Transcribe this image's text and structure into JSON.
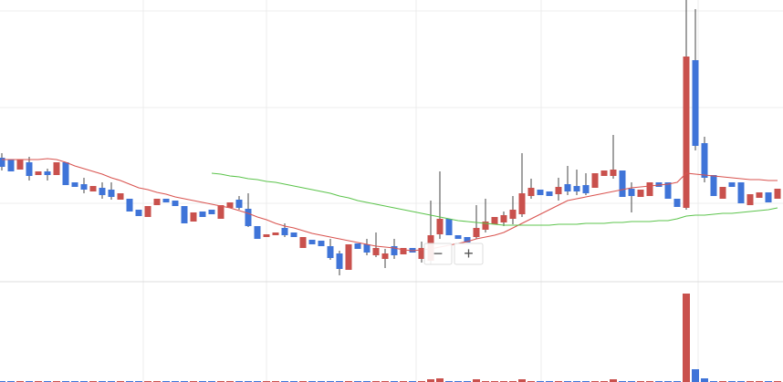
{
  "chart_data": {
    "type": "candlestick",
    "ylim": [
      0,
      310
    ],
    "up_color": "#c9514d",
    "down_color": "#3f74d8",
    "open": [
      137,
      135,
      124,
      132,
      118,
      122,
      118,
      132,
      110,
      108,
      100,
      104,
      102,
      91,
      92,
      80,
      72,
      85,
      92,
      90,
      84,
      67,
      78,
      80,
      70,
      82,
      91,
      81,
      62,
      50,
      52,
      60,
      55,
      38,
      47,
      46,
      40,
      32,
      14,
      43,
      42,
      30,
      26,
      40,
      31,
      38,
      26,
      24,
      53,
      70,
      52,
      50,
      50,
      58,
      64,
      66,
      70,
      75,
      95,
      102,
      100,
      97,
      108,
      106,
      107,
      104,
      117,
      117,
      123,
      103,
      94,
      95,
      110,
      110,
      92,
      82,
      244,
      153,
      118,
      92,
      110,
      110,
      85,
      93,
      99,
      92
    ],
    "high": [
      142,
      135,
      135,
      138,
      122,
      125,
      132,
      132,
      110,
      115,
      106,
      110,
      110,
      98,
      92,
      80,
      84,
      92,
      92,
      90,
      84,
      77,
      78,
      80,
      85,
      88,
      95,
      98,
      62,
      53,
      55,
      65,
      55,
      50,
      47,
      46,
      48,
      35,
      42,
      43,
      48,
      55,
      37,
      48,
      38,
      38,
      45,
      90,
      122,
      70,
      52,
      50,
      85,
      92,
      72,
      78,
      95,
      142,
      114,
      102,
      100,
      115,
      128,
      124,
      120,
      120,
      123,
      162,
      123,
      110,
      102,
      110,
      110,
      110,
      92,
      310,
      300,
      160,
      118,
      105,
      110,
      110,
      97,
      99,
      99,
      103
    ],
    "low": [
      123,
      122,
      124,
      112,
      118,
      112,
      118,
      107,
      105,
      98,
      100,
      92,
      91,
      91,
      78,
      73,
      72,
      85,
      88,
      84,
      65,
      67,
      72,
      75,
      70,
      82,
      80,
      61,
      48,
      50,
      52,
      50,
      50,
      38,
      42,
      40,
      25,
      8,
      14,
      37,
      30,
      28,
      16,
      26,
      31,
      33,
      22,
      20,
      48,
      52,
      48,
      44,
      48,
      55,
      64,
      62,
      64,
      72,
      92,
      96,
      95,
      90,
      96,
      96,
      96,
      104,
      117,
      114,
      94,
      77,
      94,
      95,
      105,
      92,
      83,
      80,
      145,
      110,
      95,
      92,
      105,
      87,
      85,
      93,
      88,
      92
    ],
    "close": [
      127,
      122,
      135,
      117,
      122,
      118,
      132,
      107,
      105,
      102,
      106,
      96,
      94,
      98,
      78,
      73,
      84,
      92,
      88,
      84,
      65,
      77,
      72,
      75,
      85,
      88,
      82,
      62,
      48,
      53,
      55,
      52,
      50,
      50,
      42,
      40,
      27,
      15,
      42,
      37,
      33,
      38,
      32,
      30,
      38,
      33,
      38,
      52,
      70,
      52,
      48,
      44,
      60,
      67,
      72,
      74,
      80,
      98,
      104,
      96,
      95,
      105,
      100,
      100,
      98,
      120,
      123,
      124,
      94,
      95,
      102,
      110,
      105,
      92,
      83,
      248,
      150,
      115,
      95,
      105,
      105,
      87,
      97,
      99,
      88,
      103
    ],
    "ma": [
      {
        "color": "#d9534f",
        "values": [
          135,
          135,
          135,
          135,
          135,
          136,
          135,
          132,
          128,
          125,
          122,
          119,
          115,
          112,
          108,
          104,
          102,
          99,
          97,
          94,
          92,
          90,
          88,
          86,
          84,
          82,
          79,
          76,
          72,
          69,
          65,
          62,
          60,
          57,
          54,
          52,
          50,
          48,
          46,
          44,
          42,
          40,
          39,
          38,
          36,
          35,
          36,
          37,
          39,
          41,
          43,
          45,
          48,
          50,
          52,
          55,
          60,
          65,
          70,
          75,
          80,
          85,
          90,
          92,
          94,
          96,
          98,
          100,
          102,
          104,
          105,
          106,
          107,
          108,
          110,
          120,
          119,
          118,
          117,
          116,
          115,
          114,
          113,
          113,
          112,
          112
        ]
      },
      {
        "color": "#5cc44c",
        "values": [
          null,
          null,
          null,
          null,
          null,
          null,
          null,
          null,
          null,
          null,
          null,
          null,
          null,
          null,
          null,
          null,
          null,
          null,
          null,
          null,
          null,
          null,
          null,
          120,
          119,
          117,
          116,
          114,
          113,
          111,
          110,
          108,
          106,
          104,
          102,
          100,
          98,
          95,
          93,
          90,
          88,
          86,
          84,
          82,
          80,
          78,
          76,
          74,
          72,
          70,
          68,
          67,
          66,
          65,
          64,
          63,
          63,
          63,
          63,
          63,
          63,
          64,
          64,
          64,
          65,
          65,
          65,
          66,
          66,
          67,
          67,
          67,
          68,
          68,
          70,
          73,
          74,
          74,
          75,
          76,
          76,
          77,
          78,
          79,
          80,
          82
        ]
      }
    ],
    "volume": {
      "ylim": [
        0,
        109
      ],
      "values": [
        1,
        1,
        1,
        1,
        1,
        1,
        1,
        1,
        1,
        1,
        1,
        1,
        1,
        1,
        1,
        1,
        1,
        1,
        1,
        1,
        1,
        1,
        1,
        1,
        1,
        1,
        1,
        1,
        1,
        1,
        1,
        1,
        1,
        1,
        1,
        1,
        1,
        1,
        1,
        1,
        1,
        1,
        1,
        1,
        1,
        1,
        1,
        3,
        4,
        1,
        1,
        1,
        3,
        1,
        1,
        1,
        1,
        3,
        1,
        1,
        1,
        1,
        1,
        1,
        1,
        1,
        1,
        3,
        1,
        1,
        1,
        1,
        1,
        1,
        1,
        97,
        14,
        4,
        1,
        1,
        1,
        1,
        1,
        1,
        1,
        1
      ]
    }
  },
  "controls": {
    "zoom_out": "−",
    "zoom_in": "+"
  }
}
